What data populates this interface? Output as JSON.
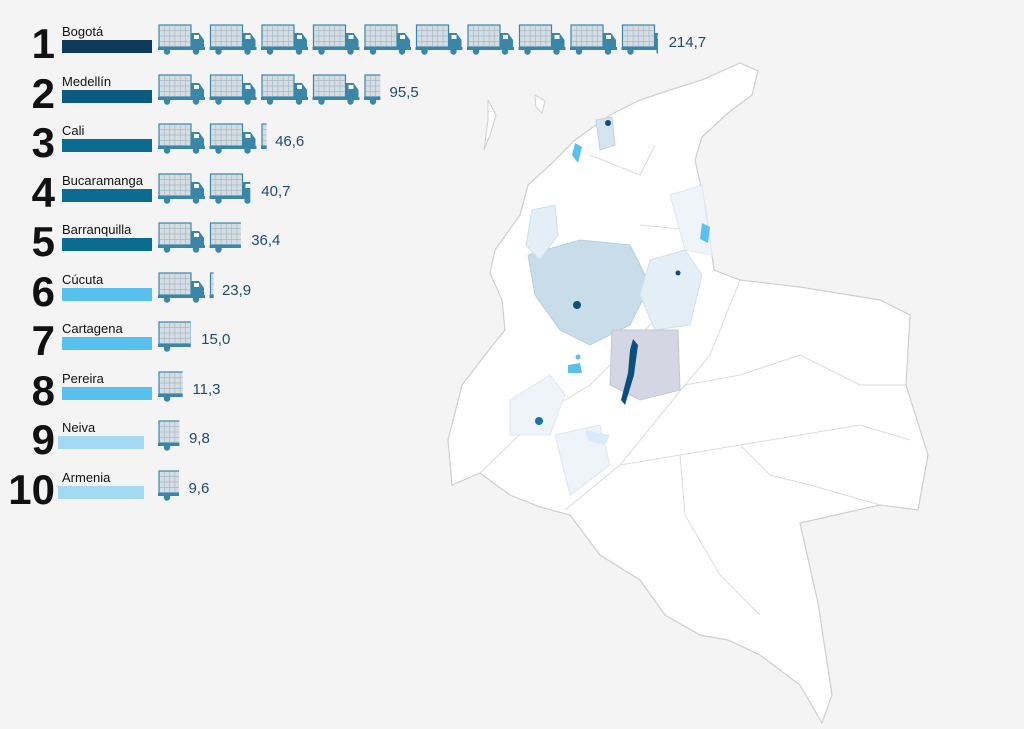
{
  "chart_data": {
    "type": "bar",
    "categories": [
      "Bogotá",
      "Medellín",
      "Cali",
      "Bucaramanga",
      "Barranquilla",
      "Cúcuta",
      "Cartagena",
      "Pereira",
      "Neiva",
      "Armenia"
    ],
    "ranks": [
      "1",
      "2",
      "3",
      "4",
      "5",
      "6",
      "7",
      "8",
      "9",
      "10"
    ],
    "values": [
      214.7,
      95.5,
      46.6,
      40.7,
      36.4,
      23.9,
      15.0,
      11.3,
      9.8,
      9.6
    ],
    "value_labels": [
      "214,7",
      "95,5",
      "46,6",
      "40,7",
      "36,4",
      "23,9",
      "15,0",
      "11,3",
      "9,8",
      "9,6"
    ],
    "bar_colors": [
      "#0e3a5b",
      "#0c5a80",
      "#0c6b91",
      "#0c6b91",
      "#0c6b91",
      "#57c0ec",
      "#57c0ec",
      "#57c0ec",
      "#a4d9f3",
      "#a4d9f3"
    ],
    "icon": "truck-icon",
    "units_per_icon": 22,
    "title": "",
    "xlabel": "",
    "ylabel": ""
  },
  "colors": {
    "background": "#f4f4f4",
    "icon_fill": "#d5dde3",
    "icon_stroke": "#3a86a8",
    "value_text": "#1c4d6e",
    "map_fill": "#ffffff",
    "map_border": "#cfcfcf",
    "region_light": "#e3eef6",
    "region_medium": "#c8dcea",
    "region_lavender": "#d4d6e4",
    "city_marker": "#0c4f7a",
    "water": "#5cc0ec"
  }
}
